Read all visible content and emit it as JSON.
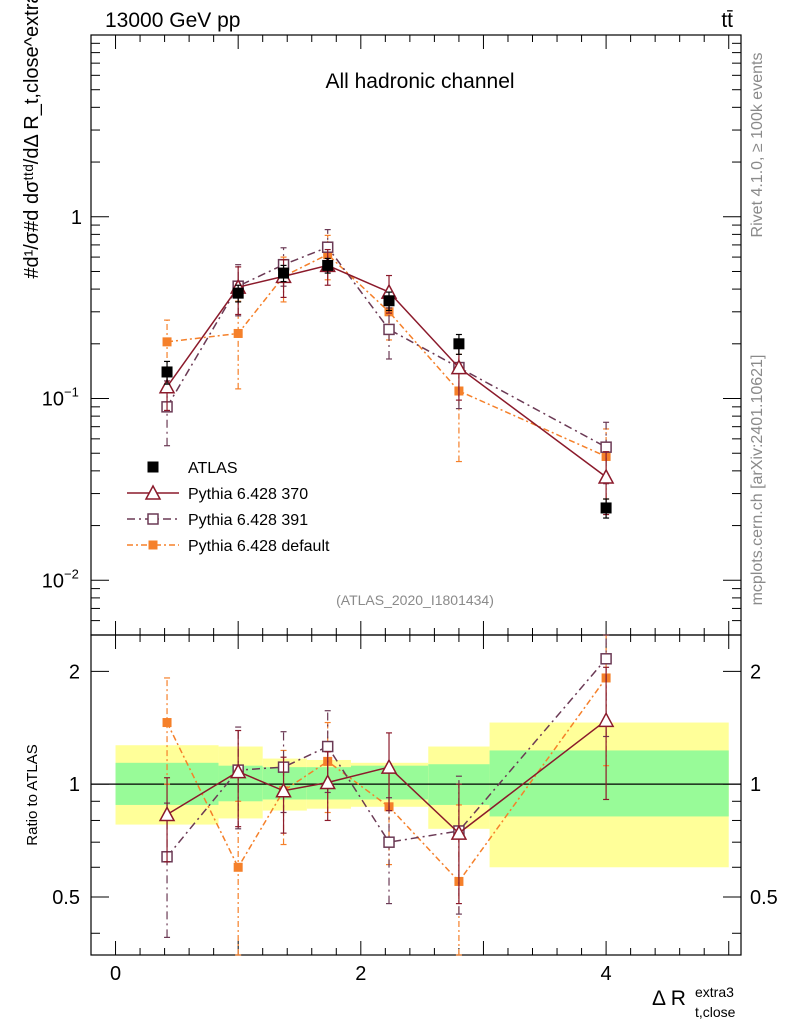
{
  "header": {
    "energy_label": "13000 GeV pp",
    "process_label": "tt̄"
  },
  "side": {
    "rivet_label": "Rivet 4.1.0, ≥ 100k events",
    "mcplots_label": "mcplots.cern.ch [arXiv:2401.10621]"
  },
  "main": {
    "title": "All hadronic channel",
    "analysis_id": "(ATLAS_2020_I1801434)",
    "ylabel": "#d¹/σ#d dσᵗᵗᵈ/dΔ R_t,close^extra3",
    "yticks": [
      {
        "value": 1,
        "label": "1",
        "sup": ""
      },
      {
        "value": 0.1,
        "label": "10",
        "sup": "−1"
      },
      {
        "value": 0.01,
        "label": "10",
        "sup": "−2"
      }
    ]
  },
  "ratio": {
    "ylabel": "Ratio to ATLAS",
    "yticks": [
      {
        "value": 0.5,
        "label": "0.5"
      },
      {
        "value": 1,
        "label": "1"
      },
      {
        "value": 2,
        "label": "2"
      }
    ]
  },
  "xaxis": {
    "label_main": "Δ R",
    "label_sup": "extra3",
    "label_sub": "t,close",
    "ticks": [
      {
        "value": 0,
        "label": "0"
      },
      {
        "value": 2,
        "label": "2"
      },
      {
        "value": 4,
        "label": "4"
      }
    ]
  },
  "legend": [
    {
      "key": "atlas",
      "label": "ATLAS"
    },
    {
      "key": "p370",
      "label": "Pythia 6.428 370"
    },
    {
      "key": "p391",
      "label": "Pythia 6.428 391"
    },
    {
      "key": "pdef",
      "label": "Pythia 6.428 default"
    }
  ],
  "colors": {
    "atlas": "#000000",
    "p370": "#8b1a2b",
    "p391": "#6b3a55",
    "pdef": "#f5802a",
    "band_inner": "#98fb98",
    "band_outer": "#ffff99"
  },
  "chart_data": [
    {
      "type": "scatter",
      "panel": "main",
      "title": "All hadronic channel",
      "xlabel": "Δ R t,close extra3",
      "ylabel": "1/σ dσ/dΔR",
      "xlim": [
        -0.2,
        5.1
      ],
      "ylim": [
        0.005,
        10
      ],
      "yscale": "log",
      "bins": [
        [
          0,
          0.84
        ],
        [
          0.84,
          1.2
        ],
        [
          1.2,
          1.56
        ],
        [
          1.56,
          1.92
        ],
        [
          1.92,
          2.55
        ],
        [
          2.55,
          3.05
        ],
        [
          3.05,
          5.0
        ]
      ],
      "series": [
        {
          "key": "atlas",
          "name": "ATLAS",
          "x": [
            0.42,
            1.0,
            1.37,
            1.73,
            2.23,
            2.8,
            4.0
          ],
          "values": [
            0.14,
            0.38,
            0.49,
            0.54,
            0.345,
            0.2,
            0.025
          ],
          "err": [
            0.02,
            0.04,
            0.05,
            0.05,
            0.04,
            0.025,
            0.003
          ]
        },
        {
          "key": "p370",
          "name": "Pythia 6.428 370",
          "x": [
            0.42,
            1.0,
            1.37,
            1.73,
            2.23,
            2.8,
            4.0
          ],
          "values": [
            0.116,
            0.41,
            0.47,
            0.54,
            0.385,
            0.148,
            0.037
          ],
          "err": [
            0.03,
            0.12,
            0.11,
            0.12,
            0.09,
            0.05,
            0.014
          ]
        },
        {
          "key": "p391",
          "name": "Pythia 6.428 391",
          "x": [
            0.42,
            1.0,
            1.37,
            1.73,
            2.23,
            2.8,
            4.0
          ],
          "values": [
            0.09,
            0.415,
            0.545,
            0.68,
            0.24,
            0.148,
            0.054
          ],
          "err": [
            0.035,
            0.13,
            0.13,
            0.17,
            0.075,
            0.06,
            0.02
          ]
        },
        {
          "key": "pdef",
          "name": "Pythia 6.428 default",
          "x": [
            0.42,
            1.0,
            1.37,
            1.73,
            2.23,
            2.8,
            4.0
          ],
          "values": [
            0.205,
            0.228,
            0.47,
            0.62,
            0.3,
            0.11,
            0.048
          ],
          "err": [
            0.065,
            0.115,
            0.13,
            0.17,
            0.09,
            0.065,
            0.02
          ]
        }
      ]
    },
    {
      "type": "scatter",
      "panel": "ratio",
      "ylabel": "Ratio to ATLAS",
      "xlim": [
        -0.2,
        5.1
      ],
      "ylim": [
        0.35,
        2.5
      ],
      "yscale": "log",
      "bands": [
        {
          "x0": 0,
          "x1": 0.84,
          "inner": [
            0.88,
            1.14
          ],
          "outer": [
            0.78,
            1.27
          ]
        },
        {
          "x0": 0.84,
          "x1": 1.2,
          "inner": [
            0.9,
            1.12
          ],
          "outer": [
            0.81,
            1.26
          ]
        },
        {
          "x0": 1.2,
          "x1": 1.56,
          "inner": [
            0.91,
            1.11
          ],
          "outer": [
            0.85,
            1.17
          ]
        },
        {
          "x0": 1.56,
          "x1": 1.92,
          "inner": [
            0.91,
            1.11
          ],
          "outer": [
            0.86,
            1.16
          ]
        },
        {
          "x0": 1.92,
          "x1": 2.55,
          "inner": [
            0.91,
            1.12
          ],
          "outer": [
            0.87,
            1.14
          ]
        },
        {
          "x0": 2.55,
          "x1": 3.05,
          "inner": [
            0.88,
            1.13
          ],
          "outer": [
            0.76,
            1.26
          ]
        },
        {
          "x0": 3.05,
          "x1": 5.0,
          "inner": [
            0.82,
            1.23
          ],
          "outer": [
            0.6,
            1.46
          ]
        }
      ],
      "series": [
        {
          "key": "p370",
          "name": "Pythia 6.428 370",
          "x": [
            0.42,
            1.0,
            1.37,
            1.73,
            2.23,
            2.8,
            4.0
          ],
          "values": [
            0.83,
            1.08,
            0.96,
            1.01,
            1.11,
            0.74,
            1.48
          ],
          "err": [
            0.21,
            0.31,
            0.22,
            0.21,
            0.26,
            0.26,
            0.57
          ]
        },
        {
          "key": "p391",
          "name": "Pythia 6.428 391",
          "x": [
            0.42,
            1.0,
            1.37,
            1.73,
            2.23,
            2.8,
            4.0
          ],
          "values": [
            0.64,
            1.09,
            1.11,
            1.26,
            0.7,
            0.75,
            2.16
          ],
          "err": [
            0.25,
            0.33,
            0.27,
            0.31,
            0.22,
            0.3,
            0.82
          ]
        },
        {
          "key": "pdef",
          "name": "Pythia 6.428 default",
          "x": [
            0.42,
            1.0,
            1.37,
            1.73,
            2.23,
            2.8,
            4.0
          ],
          "values": [
            1.46,
            0.6,
            0.96,
            1.15,
            0.87,
            0.55,
            1.92
          ],
          "err": [
            0.46,
            0.3,
            0.27,
            0.31,
            0.26,
            0.33,
            0.8
          ]
        }
      ]
    }
  ]
}
